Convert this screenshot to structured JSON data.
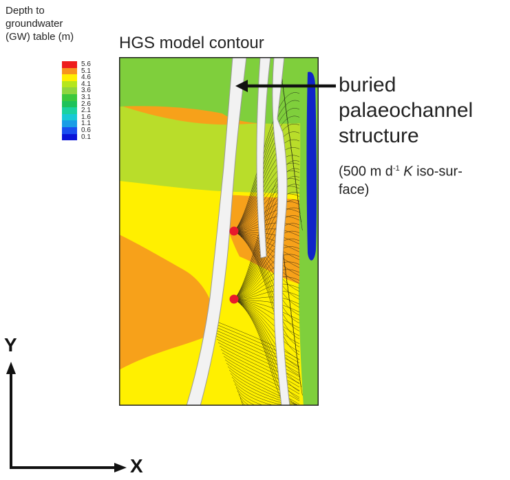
{
  "legend": {
    "title_lines": [
      "Depth to",
      "groundwater",
      "(GW) table (m)"
    ],
    "entries": [
      {
        "label": "5.6",
        "color": "#ee1c1c"
      },
      {
        "label": "5.1",
        "color": "#f7941d"
      },
      {
        "label": "4.6",
        "color": "#ffee00"
      },
      {
        "label": "4.1",
        "color": "#b5e61d"
      },
      {
        "label": "3.6",
        "color": "#8ed63f"
      },
      {
        "label": "3.1",
        "color": "#3cc83c"
      },
      {
        "label": "2.6",
        "color": "#1ec25a"
      },
      {
        "label": "2.1",
        "color": "#1ad2a0"
      },
      {
        "label": "1.6",
        "color": "#17c9d6"
      },
      {
        "label": "1.1",
        "color": "#1a9de6"
      },
      {
        "label": "0.6",
        "color": "#1a4ff0"
      },
      {
        "label": "0.1",
        "color": "#0a14d8"
      }
    ]
  },
  "map": {
    "title": "HGS model contour",
    "zone_colors": {
      "green": "#7fcf3c",
      "lime": "#b9dd2a",
      "yellow": "#fff000",
      "orange": "#f7a11a",
      "blue": "#1024c8",
      "channel": "#f2f2f2"
    }
  },
  "annotation": {
    "lines": [
      "buried",
      "palaeochannel",
      "structure"
    ],
    "sub_prefix": "(500 m d",
    "sub_sup": "-1",
    "sub_k": "K",
    "sub_suffix": " iso-sur-",
    "sub_line2": "face)"
  },
  "axes": {
    "x_label": "X",
    "y_label": "Y"
  }
}
